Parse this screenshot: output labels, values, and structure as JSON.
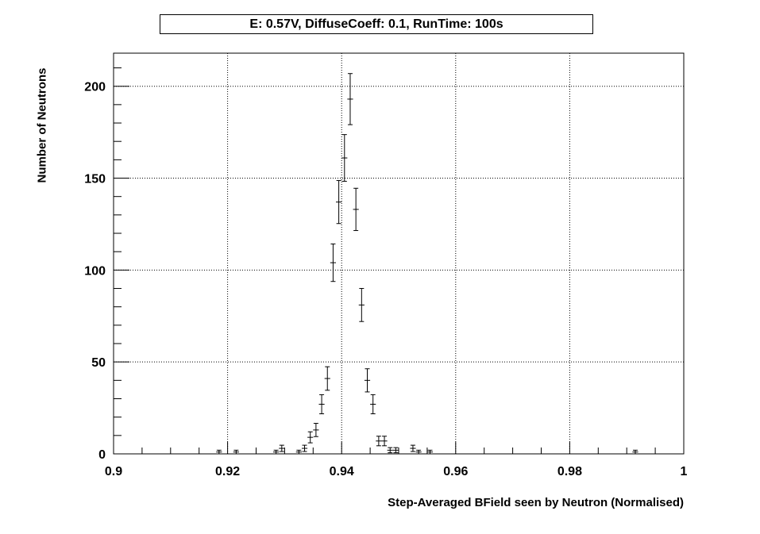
{
  "chart_data": {
    "type": "scatter",
    "title": "E: 0.57V, DiffuseCoeff: 0.1, RunTime: 100s",
    "xlabel": "Step-Averaged BField seen by Neutron (Normalised)",
    "ylabel": "Number of Neutrons",
    "xlim": [
      0.9,
      1.0
    ],
    "ylim": [
      0,
      218
    ],
    "grid": true,
    "x_ticks": [
      "0.9",
      "0.92",
      "0.94",
      "0.96",
      "0.98",
      "1"
    ],
    "y_ticks": [
      "0",
      "50",
      "100",
      "150",
      "200"
    ],
    "bin_width": 0.001,
    "points": [
      {
        "x": 0.9185,
        "y": 1,
        "err": 1.0
      },
      {
        "x": 0.9215,
        "y": 1,
        "err": 1.0
      },
      {
        "x": 0.9285,
        "y": 1,
        "err": 1.0
      },
      {
        "x": 0.9295,
        "y": 3,
        "err": 1.7
      },
      {
        "x": 0.9325,
        "y": 1,
        "err": 1.0
      },
      {
        "x": 0.9335,
        "y": 3,
        "err": 1.7
      },
      {
        "x": 0.9345,
        "y": 9,
        "err": 3.0
      },
      {
        "x": 0.9355,
        "y": 13,
        "err": 3.6
      },
      {
        "x": 0.9365,
        "y": 27,
        "err": 5.2
      },
      {
        "x": 0.9375,
        "y": 41,
        "err": 6.4
      },
      {
        "x": 0.9385,
        "y": 104,
        "err": 10.2
      },
      {
        "x": 0.9395,
        "y": 137,
        "err": 11.7
      },
      {
        "x": 0.9405,
        "y": 161,
        "err": 12.7
      },
      {
        "x": 0.9415,
        "y": 193,
        "err": 13.9
      },
      {
        "x": 0.9425,
        "y": 133,
        "err": 11.5
      },
      {
        "x": 0.9435,
        "y": 81,
        "err": 9.0
      },
      {
        "x": 0.9445,
        "y": 40,
        "err": 6.3
      },
      {
        "x": 0.9455,
        "y": 27,
        "err": 5.2
      },
      {
        "x": 0.9465,
        "y": 7,
        "err": 2.6
      },
      {
        "x": 0.9475,
        "y": 7,
        "err": 2.6
      },
      {
        "x": 0.9485,
        "y": 2,
        "err": 1.4
      },
      {
        "x": 0.9495,
        "y": 2,
        "err": 1.4
      },
      {
        "x": 0.9525,
        "y": 3,
        "err": 1.7
      },
      {
        "x": 0.9535,
        "y": 1,
        "err": 1.0
      },
      {
        "x": 0.9555,
        "y": 1,
        "err": 1.0
      },
      {
        "x": 0.9915,
        "y": 1,
        "err": 1.0
      }
    ]
  }
}
